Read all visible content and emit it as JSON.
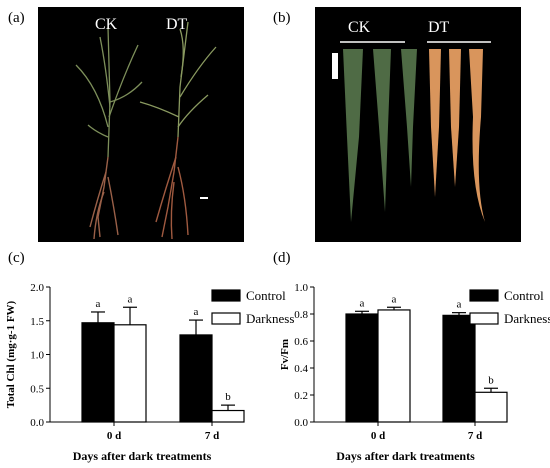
{
  "panels": {
    "a": {
      "label": "(a)",
      "groups": [
        "CK",
        "DT"
      ]
    },
    "b": {
      "label": "(b)",
      "groups": [
        "CK",
        "DT"
      ]
    },
    "c": {
      "label": "(c)"
    },
    "d": {
      "label": "(d)"
    }
  },
  "chart_data": [
    {
      "type": "bar",
      "categories": [
        "0 d",
        "7 d"
      ],
      "series": [
        {
          "name": "Control",
          "color": "#000000",
          "values": [
            1.47,
            1.29
          ],
          "errors": [
            0.16,
            0.22
          ],
          "letters": [
            "a",
            "a"
          ]
        },
        {
          "name": "Darkness",
          "color": "#ffffff",
          "values": [
            1.44,
            0.17
          ],
          "errors": [
            0.26,
            0.08
          ],
          "letters": [
            "a",
            "b"
          ]
        }
      ],
      "title": "",
      "xlabel": "Days after dark treatments",
      "ylabel": "Total Chl (mg·g-1 FW)",
      "ylim": [
        0,
        2.0
      ],
      "yticks": [
        "0.0",
        "0.5",
        "1.0",
        "1.5",
        "2.0"
      ],
      "legend": "top-right",
      "grid": false
    },
    {
      "type": "bar",
      "categories": [
        "0 d",
        "7 d"
      ],
      "series": [
        {
          "name": "Control",
          "color": "#000000",
          "values": [
            0.8,
            0.79
          ],
          "errors": [
            0.02,
            0.02
          ],
          "letters": [
            "a",
            "a"
          ]
        },
        {
          "name": "Darkness",
          "color": "#ffffff",
          "values": [
            0.83,
            0.22
          ],
          "errors": [
            0.02,
            0.03
          ],
          "letters": [
            "a",
            "b"
          ]
        }
      ],
      "title": "",
      "xlabel": "Days after dark treatments",
      "ylabel": "Fv/Fm",
      "ylim": [
        0,
        1.0
      ],
      "yticks": [
        "0.0",
        "0.2",
        "0.4",
        "0.6",
        "0.8",
        "1.0"
      ],
      "legend": "top-right",
      "grid": false
    }
  ]
}
